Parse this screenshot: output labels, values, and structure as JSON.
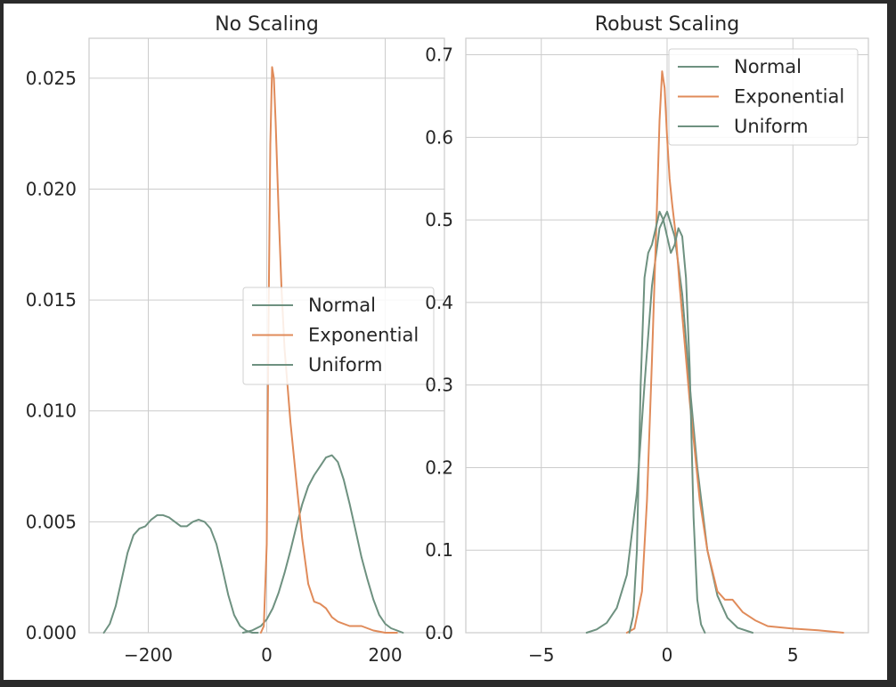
{
  "chart_data": [
    {
      "type": "line",
      "title": "No Scaling",
      "xlabel": "",
      "ylabel": "",
      "xlim": [
        -300,
        300
      ],
      "ylim": [
        0,
        0.0268
      ],
      "xticks": [
        -200,
        0,
        200
      ],
      "xtick_labels": [
        "−200",
        "0",
        "200"
      ],
      "yticks": [
        0.0,
        0.005,
        0.01,
        0.015,
        0.02,
        0.025
      ],
      "ytick_labels": [
        "0.000",
        "0.005",
        "0.010",
        "0.015",
        "0.020",
        "0.025"
      ],
      "grid": true,
      "legend": {
        "position": "center-right",
        "entries": [
          "Normal",
          "Exponential",
          "Uniform"
        ]
      },
      "series": [
        {
          "name": "Normal",
          "color": "#6e9180",
          "x": [
            -40,
            -25,
            -10,
            0,
            10,
            20,
            30,
            40,
            50,
            60,
            70,
            80,
            90,
            100,
            110,
            120,
            130,
            140,
            150,
            160,
            170,
            180,
            190,
            200,
            210,
            220,
            230
          ],
          "y": [
            0.0,
            0.0001,
            0.0003,
            0.0006,
            0.0011,
            0.0018,
            0.0027,
            0.0037,
            0.0048,
            0.0058,
            0.0066,
            0.0071,
            0.0075,
            0.0079,
            0.008,
            0.0077,
            0.0069,
            0.0058,
            0.0046,
            0.0034,
            0.0024,
            0.0015,
            0.0008,
            0.0004,
            0.0002,
            0.0001,
            0.0
          ]
        },
        {
          "name": "Exponential",
          "color": "#e08b5a",
          "x": [
            -10,
            -5,
            0,
            3,
            6,
            9,
            12,
            15,
            20,
            25,
            30,
            40,
            50,
            60,
            70,
            80,
            90,
            100,
            110,
            120,
            140,
            160,
            180,
            200,
            220
          ],
          "y": [
            0.0,
            0.0003,
            0.004,
            0.014,
            0.022,
            0.0255,
            0.025,
            0.023,
            0.019,
            0.0155,
            0.0128,
            0.0095,
            0.0068,
            0.0042,
            0.0022,
            0.0014,
            0.0013,
            0.0011,
            0.0007,
            0.0005,
            0.0003,
            0.0003,
            0.0001,
            0.0,
            0.0
          ]
        },
        {
          "name": "Uniform",
          "color": "#6e9180",
          "x": [
            -275,
            -265,
            -255,
            -245,
            -235,
            -225,
            -215,
            -205,
            -195,
            -185,
            -175,
            -165,
            -155,
            -145,
            -135,
            -125,
            -115,
            -105,
            -95,
            -85,
            -75,
            -65,
            -55,
            -45,
            -35,
            -25,
            -15
          ],
          "y": [
            0.0,
            0.0004,
            0.0012,
            0.0024,
            0.0036,
            0.0044,
            0.0047,
            0.0048,
            0.0051,
            0.0053,
            0.0053,
            0.0052,
            0.005,
            0.0048,
            0.0048,
            0.005,
            0.0051,
            0.005,
            0.0047,
            0.004,
            0.0029,
            0.0017,
            0.0008,
            0.0003,
            0.0001,
            0.0,
            0.0
          ]
        }
      ]
    },
    {
      "type": "line",
      "title": "Robust Scaling",
      "xlabel": "",
      "ylabel": "",
      "xlim": [
        -8,
        8
      ],
      "ylim": [
        0,
        0.72
      ],
      "xticks": [
        -5,
        0,
        5
      ],
      "xtick_labels": [
        "−5",
        "0",
        "5"
      ],
      "yticks": [
        0.0,
        0.1,
        0.2,
        0.3,
        0.4,
        0.5,
        0.6,
        0.7
      ],
      "ytick_labels": [
        "0.0",
        "0.1",
        "0.2",
        "0.3",
        "0.4",
        "0.5",
        "0.6",
        "0.7"
      ],
      "grid": true,
      "legend": {
        "position": "upper-right",
        "entries": [
          "Normal",
          "Exponential",
          "Uniform"
        ]
      },
      "series": [
        {
          "name": "Normal",
          "color": "#6e9180",
          "x": [
            -3.2,
            -2.8,
            -2.4,
            -2.0,
            -1.6,
            -1.2,
            -0.9,
            -0.6,
            -0.3,
            0.0,
            0.3,
            0.6,
            0.9,
            1.2,
            1.6,
            2.0,
            2.4,
            2.8,
            3.4
          ],
          "y": [
            0.0,
            0.004,
            0.012,
            0.03,
            0.07,
            0.17,
            0.3,
            0.42,
            0.49,
            0.51,
            0.48,
            0.41,
            0.3,
            0.2,
            0.1,
            0.045,
            0.018,
            0.006,
            0.0
          ]
        },
        {
          "name": "Exponential",
          "color": "#e08b5a",
          "x": [
            -1.6,
            -1.3,
            -1.0,
            -0.8,
            -0.6,
            -0.4,
            -0.3,
            -0.2,
            -0.1,
            0.0,
            0.1,
            0.2,
            0.35,
            0.5,
            0.7,
            0.9,
            1.1,
            1.3,
            1.6,
            2.0,
            2.3,
            2.6,
            3.0,
            3.5,
            4.0,
            5.0,
            6.0,
            7.0
          ],
          "y": [
            0.0,
            0.005,
            0.05,
            0.16,
            0.33,
            0.52,
            0.62,
            0.68,
            0.66,
            0.6,
            0.55,
            0.52,
            0.48,
            0.42,
            0.35,
            0.28,
            0.22,
            0.16,
            0.1,
            0.05,
            0.04,
            0.04,
            0.025,
            0.015,
            0.008,
            0.005,
            0.003,
            0.0
          ]
        },
        {
          "name": "Uniform",
          "color": "#6e9180",
          "x": [
            -1.5,
            -1.35,
            -1.2,
            -1.05,
            -0.9,
            -0.75,
            -0.6,
            -0.45,
            -0.3,
            -0.15,
            0.0,
            0.15,
            0.3,
            0.45,
            0.6,
            0.75,
            0.9,
            1.05,
            1.2,
            1.35,
            1.5
          ],
          "y": [
            0.0,
            0.02,
            0.1,
            0.3,
            0.43,
            0.46,
            0.47,
            0.49,
            0.51,
            0.5,
            0.48,
            0.46,
            0.47,
            0.49,
            0.48,
            0.43,
            0.32,
            0.14,
            0.04,
            0.01,
            0.0
          ]
        }
      ]
    }
  ]
}
